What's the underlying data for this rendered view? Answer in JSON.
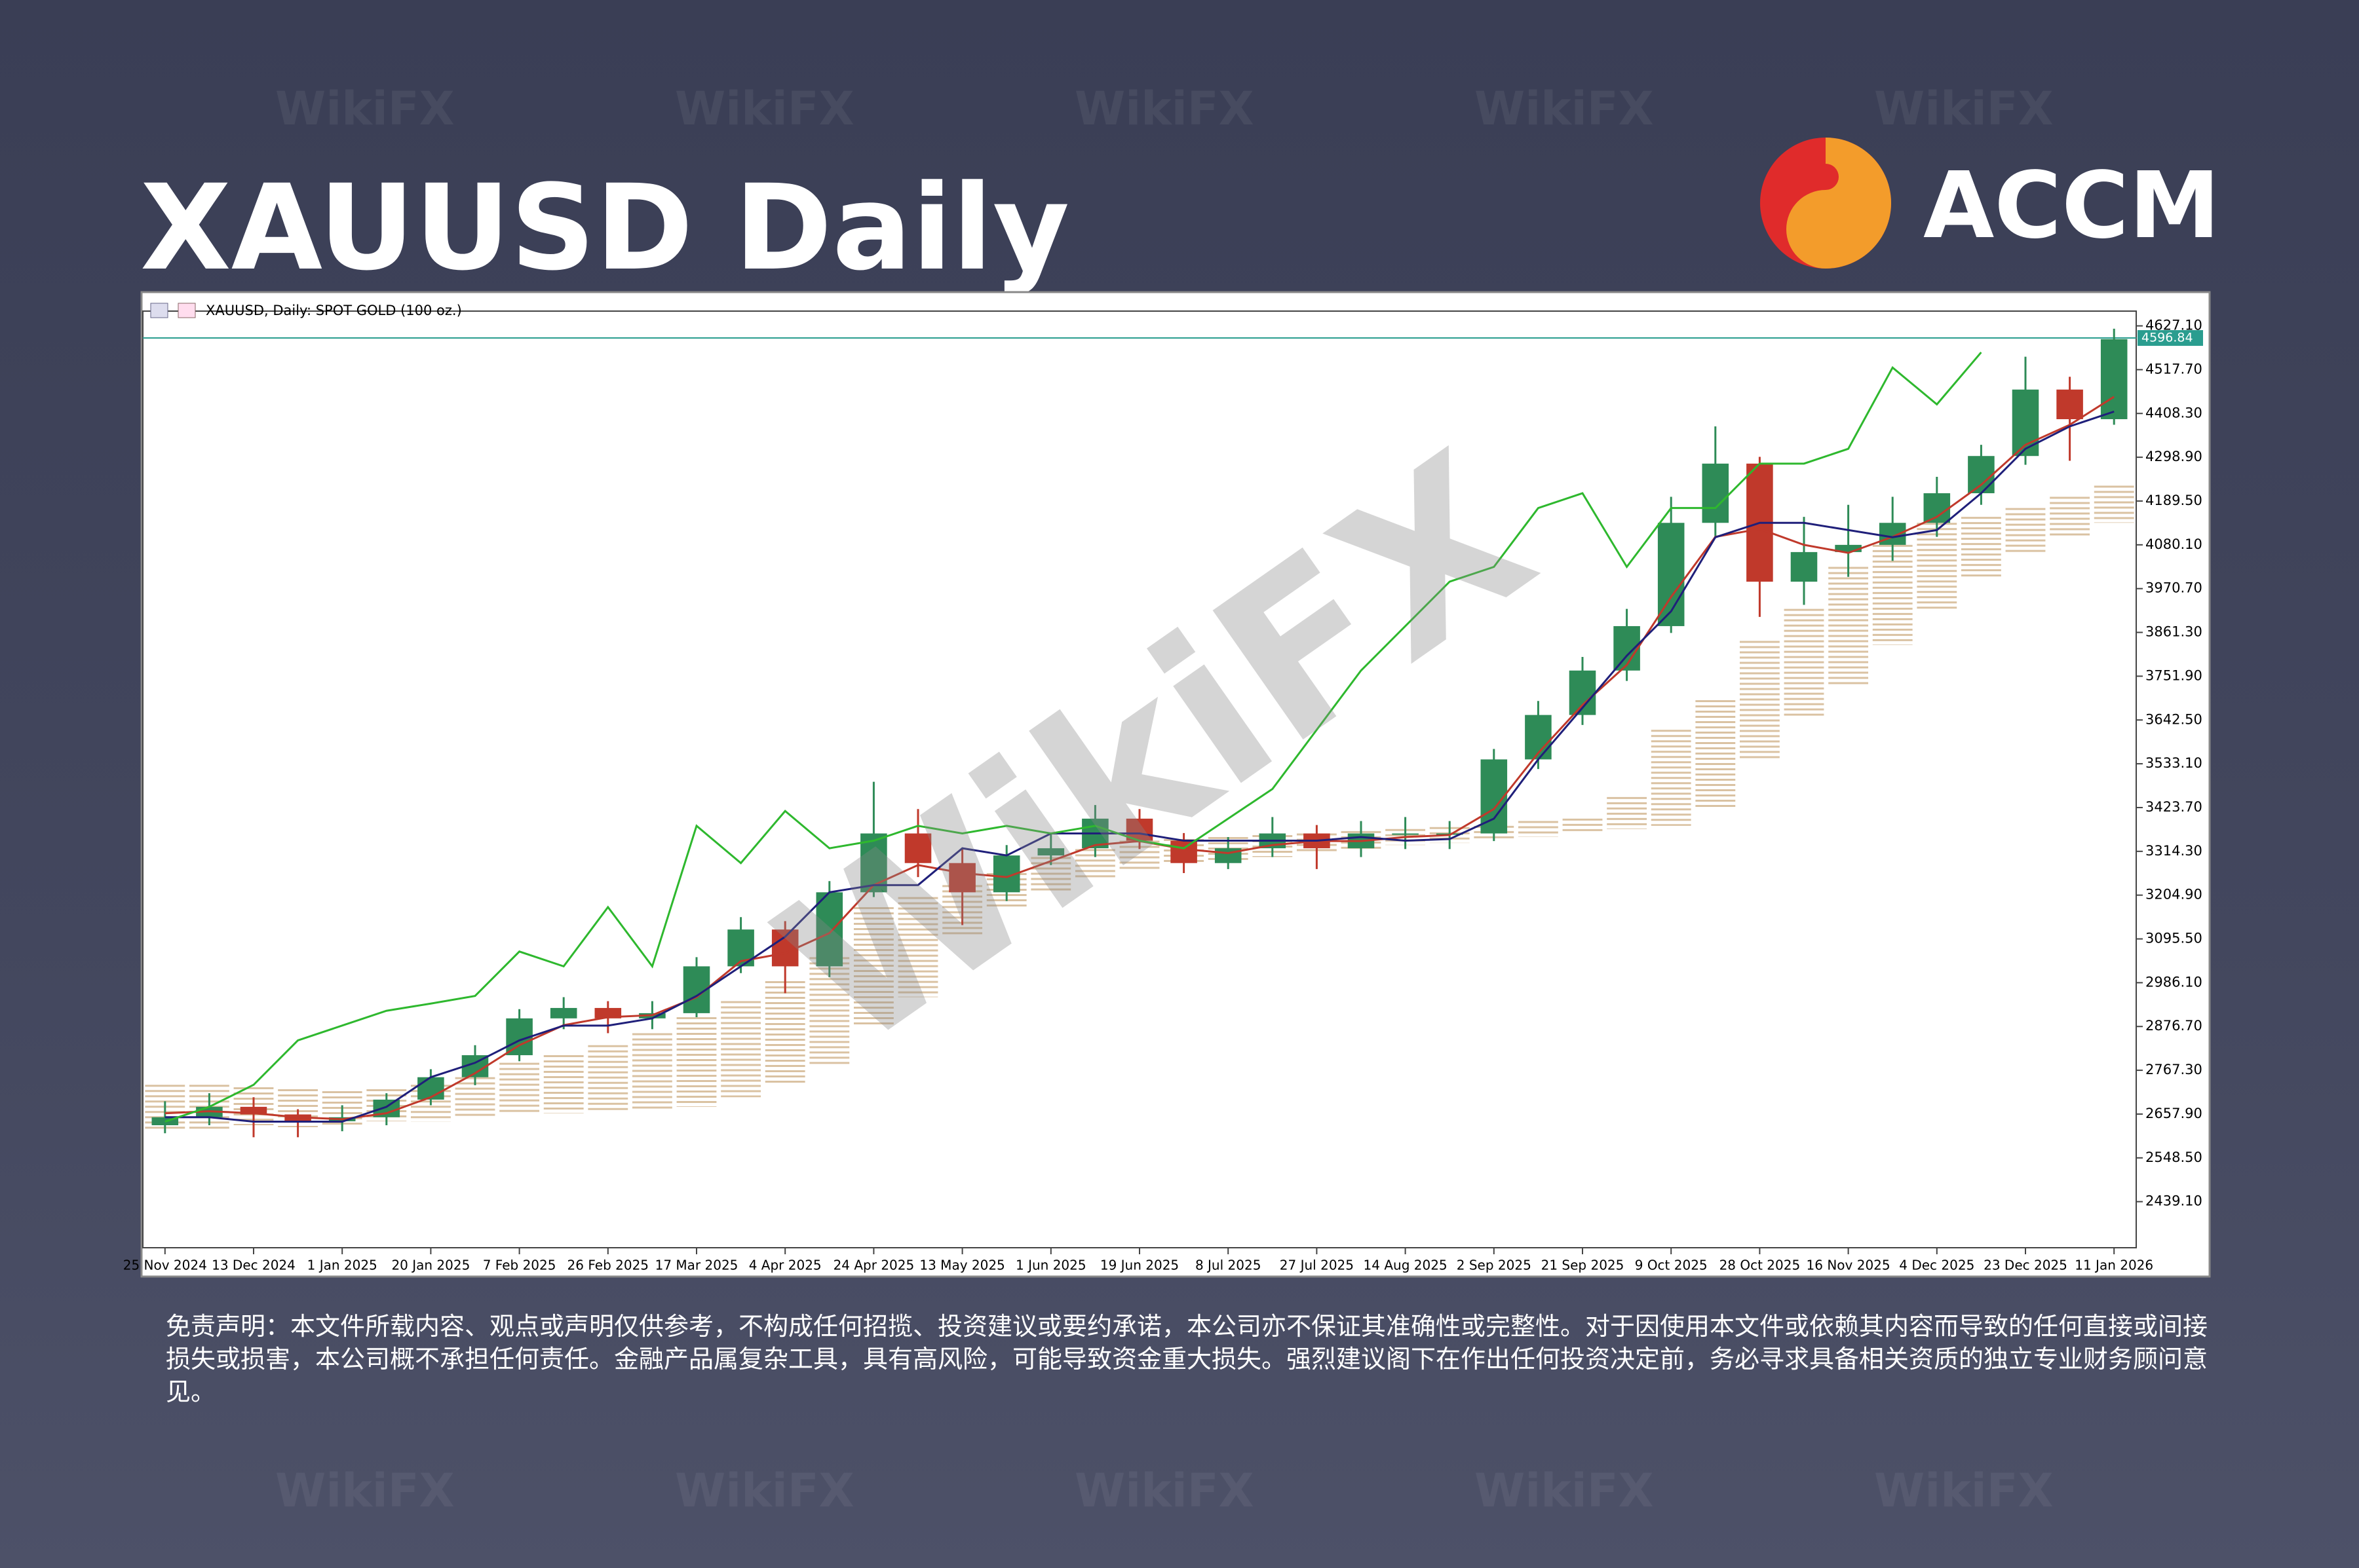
{
  "title": "XAUUSD Daily",
  "logo": "ACCM",
  "watermark": "WikiFX",
  "disclaimer": "免责声明：本文件所载内容、观点或声明仅供参考，不构成任何招揽、投资建议或要约承诺，本公司亦不保证其准确性或完整性。对于因使用本文件或依赖其内容而导致的任何直接或间接损失或损害，本公司概不承担任何责任。金融产品属复杂工具，具有高风险，可能导致资金重大损失。强烈建议阁下在作出任何投资决定前，务必寻求具备相关资质的独立专业财务顾问意见。",
  "chart_data": {
    "type": "candlestick",
    "title": "XAUUSD, Daily: SPOT GOLD (100 oz.)",
    "categories": [
      "25 Nov 2024",
      null,
      "13 Dec 2024",
      null,
      "1 Jan 2025",
      null,
      "20 Jan 2025",
      null,
      "7 Feb 2025",
      null,
      "26 Feb 2025",
      null,
      "17 Mar 2025",
      null,
      "4 Apr 2025",
      null,
      "24 Apr 2025",
      null,
      "13 May 2025",
      null,
      "1 Jun 2025",
      null,
      "19 Jun 2025",
      null,
      "8 Jul 2025",
      null,
      "27 Jul 2025",
      null,
      "14 Aug 2025",
      null,
      "2 Sep 2025",
      null,
      "21 Sep 2025",
      null,
      "9 Oct 2025",
      null,
      "28 Oct 2025",
      null,
      "16 Nov 2025",
      null,
      "4 Dec 2025",
      null,
      "23 Dec 2025",
      null,
      "11 Jan 2026"
    ],
    "open": [
      2630,
      2650,
      2676,
      2657,
      2640,
      2650,
      2694,
      2750,
      2805,
      2897,
      2923,
      2897,
      2910,
      3027,
      3119,
      3027,
      3212,
      3359,
      3285,
      3212,
      3304,
      3322,
      3396,
      3341,
      3285,
      3322,
      3359,
      3322,
      3359,
      3359,
      3359,
      3544,
      3655,
      3766,
      3877,
      4135,
      4283,
      3988,
      4062,
      4080,
      4135,
      4209,
      4302,
      4468,
      4394
    ],
    "high": [
      2690,
      2710,
      2700,
      2670,
      2680,
      2710,
      2770,
      2830,
      2920,
      2950,
      2940,
      2940,
      3050,
      3150,
      3140,
      3240,
      3488,
      3420,
      3320,
      3330,
      3360,
      3430,
      3420,
      3360,
      3350,
      3400,
      3380,
      3390,
      3400,
      3390,
      3570,
      3690,
      3800,
      3920,
      4200,
      4376,
      4300,
      4150,
      4180,
      4200,
      4250,
      4330,
      4550,
      4500,
      4620
    ],
    "low": [
      2610,
      2630,
      2600,
      2600,
      2615,
      2630,
      2680,
      2730,
      2790,
      2870,
      2860,
      2870,
      2900,
      3010,
      2960,
      3000,
      3200,
      3250,
      3130,
      3190,
      3280,
      3300,
      3320,
      3260,
      3270,
      3300,
      3270,
      3300,
      3320,
      3320,
      3340,
      3520,
      3630,
      3740,
      3860,
      4100,
      3900,
      3930,
      4000,
      4040,
      4100,
      4180,
      4280,
      4290,
      4380
    ],
    "close": [
      2650,
      2676,
      2657,
      2640,
      2650,
      2694,
      2750,
      2805,
      2897,
      2923,
      2897,
      2910,
      3027,
      3119,
      3027,
      3212,
      3359,
      3285,
      3212,
      3304,
      3322,
      3396,
      3341,
      3285,
      3322,
      3359,
      3322,
      3359,
      3359,
      3359,
      3544,
      3655,
      3766,
      3877,
      4135,
      4283,
      3988,
      4062,
      4080,
      4135,
      4209,
      4302,
      4468,
      4394,
      4594
    ],
    "up_color": "#2e8b57",
    "down_color": "#c0392b",
    "series": [
      {
        "color": "#c0392b",
        "values": [
          2660,
          2665,
          2660,
          2650,
          2645,
          2660,
          2700,
          2760,
          2830,
          2880,
          2900,
          2905,
          2950,
          3040,
          3060,
          3110,
          3230,
          3280,
          3260,
          3250,
          3290,
          3330,
          3340,
          3320,
          3310,
          3330,
          3340,
          3340,
          3350,
          3355,
          3420,
          3560,
          3680,
          3780,
          3950,
          4100,
          4120,
          4080,
          4060,
          4100,
          4150,
          4230,
          4330,
          4380,
          4450
        ]
      },
      {
        "color": "#1f1f7a",
        "values": [
          2650,
          2650,
          2639,
          2639,
          2639,
          2676,
          2750,
          2786,
          2842,
          2879,
          2879,
          2897,
          2953,
          3027,
          3101,
          3212,
          3230,
          3230,
          3322,
          3304,
          3359,
          3359,
          3359,
          3341,
          3341,
          3341,
          3341,
          3350,
          3341,
          3345,
          3396,
          3544,
          3673,
          3803,
          3914,
          4099,
          4135,
          4135,
          4117,
          4099,
          4117,
          4209,
          4320,
          4376,
          4413
        ]
      },
      {
        "color": "#2eb82e",
        "values": [
          2639,
          2676,
          2731,
          2842,
          2879,
          2916,
          2934,
          2953,
          3064,
          3027,
          3175,
          3027,
          3378,
          3285,
          3415,
          3322,
          3341,
          3378,
          3359,
          3378,
          3359,
          3378,
          3341,
          3322,
          3396,
          3470,
          3618,
          3766,
          3877,
          3988,
          4025,
          4172,
          4209,
          4025,
          4172,
          4172,
          4283,
          4283,
          4320,
          4523,
          4431,
          4561,
          null,
          null,
          null
        ]
      }
    ],
    "cloud": {
      "color": "#d2b48c",
      "upper": [
        2731,
        2731,
        2725,
        2720,
        2715,
        2720,
        2731,
        2750,
        2786,
        2805,
        2830,
        2860,
        2900,
        2940,
        2990,
        3050,
        3175,
        3200,
        3230,
        3260,
        3300,
        3320,
        3341,
        3345,
        3350,
        3355,
        3359,
        3365,
        3370,
        3375,
        3378,
        3390,
        3396,
        3450,
        3618,
        3692,
        3840,
        3920,
        4025,
        4080,
        4135,
        4150,
        4172,
        4200,
        4228
      ],
      "lower": [
        2620,
        2620,
        2630,
        2625,
        2630,
        2640,
        2639,
        2650,
        2657,
        2660,
        2665,
        2670,
        2676,
        2700,
        2730,
        2780,
        2879,
        2950,
        3100,
        3170,
        3212,
        3249,
        3267,
        3280,
        3285,
        3300,
        3310,
        3320,
        3330,
        3335,
        3340,
        3350,
        3359,
        3370,
        3378,
        3420,
        3544,
        3650,
        3729,
        3830,
        3914,
        4000,
        4062,
        4100,
        4135
      ]
    },
    "price_line": {
      "value": 4596.84,
      "color": "#2a9d8f"
    },
    "ylim": [
      2324,
      4664
    ],
    "yticks": [
      {
        "value": 2439.1,
        "label": "2439.10"
      },
      {
        "value": 2548.5,
        "label": "2548.50"
      },
      {
        "value": 2657.9,
        "label": "2657.90"
      },
      {
        "value": 2767.3,
        "label": "2767.30"
      },
      {
        "value": 2876.7,
        "label": "2876.70"
      },
      {
        "value": 2986.1,
        "label": "2986.10"
      },
      {
        "value": 3095.5,
        "label": "3095.50"
      },
      {
        "value": 3204.9,
        "label": "3204.90"
      },
      {
        "value": 3314.3,
        "label": "3314.30"
      },
      {
        "value": 3423.7,
        "label": "3423.70"
      },
      {
        "value": 3533.1,
        "label": "3533.10"
      },
      {
        "value": 3642.5,
        "label": "3642.50"
      },
      {
        "value": 3751.9,
        "label": "3751.90"
      },
      {
        "value": 3861.3,
        "label": "3861.30"
      },
      {
        "value": 3970.7,
        "label": "3970.70"
      },
      {
        "value": 4080.1,
        "label": "4080.10"
      },
      {
        "value": 4189.5,
        "label": "4189.50"
      },
      {
        "value": 4298.9,
        "label": "4298.90"
      },
      {
        "value": 4408.3,
        "label": "4408.30"
      },
      {
        "value": 4517.7,
        "label": "4517.70"
      },
      {
        "value": 4627.1,
        "label": "4627.10"
      }
    ]
  }
}
